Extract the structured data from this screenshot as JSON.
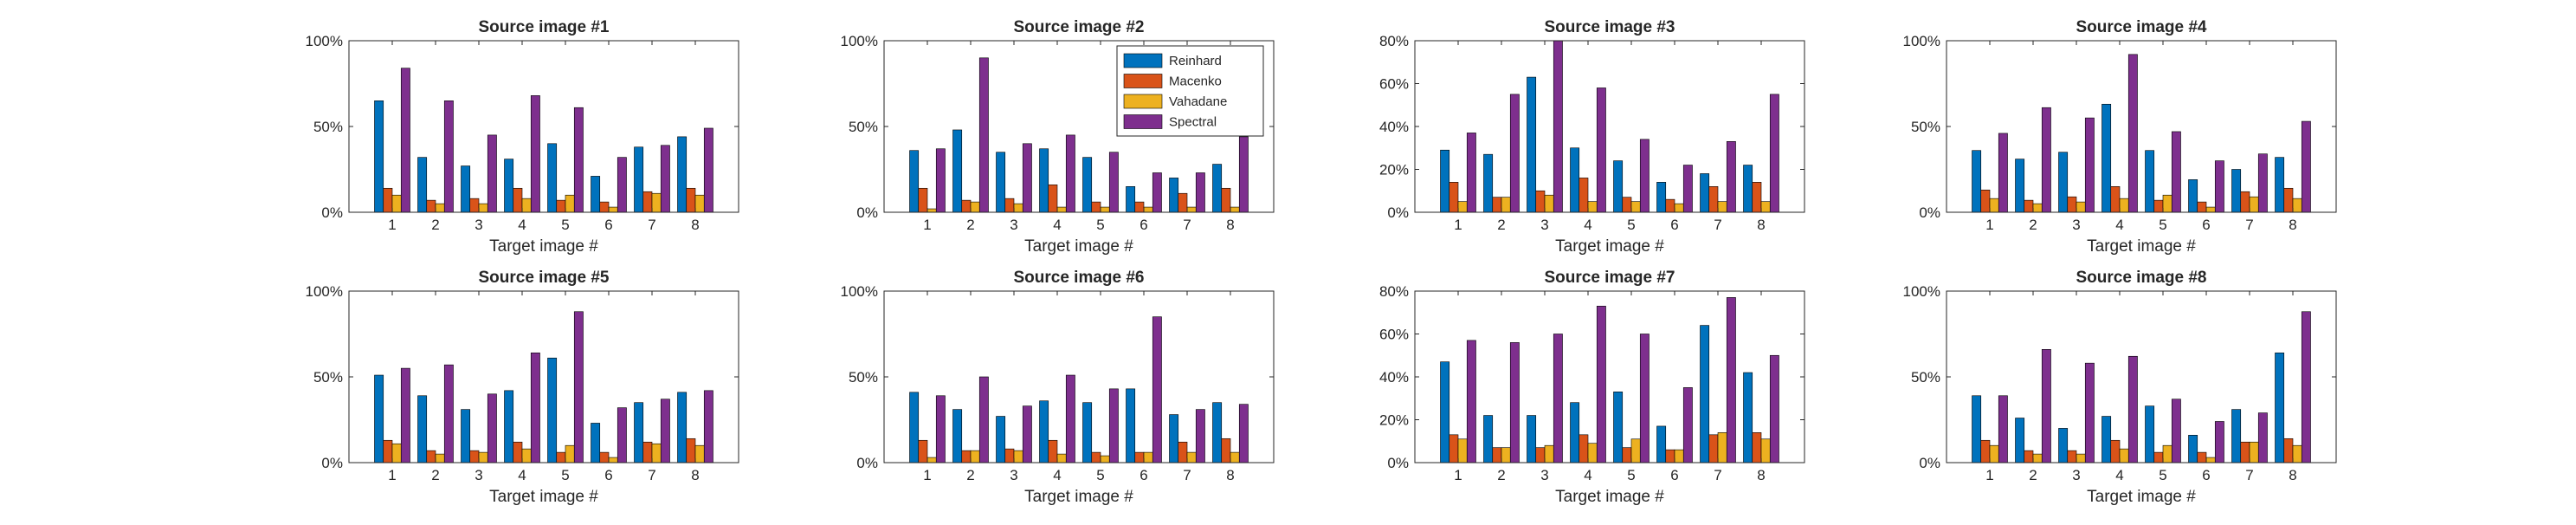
{
  "colors": {
    "Reinhard": "#0072BD",
    "Macenko": "#D95319",
    "Vahadane": "#EDB120",
    "Spectral": "#7E2F8E"
  },
  "legend": {
    "entries": [
      "Reinhard",
      "Macenko",
      "Vahadane",
      "Spectral"
    ],
    "placement": "top-right of Source image #2"
  },
  "chart_data": [
    {
      "type": "bar",
      "title": "Source image #1",
      "xlabel": "Target image #",
      "categories": [
        "1",
        "2",
        "3",
        "4",
        "5",
        "6",
        "7",
        "8"
      ],
      "ylim": [
        0,
        100
      ],
      "yticks": [
        0,
        50,
        100
      ],
      "ytick_labels": [
        "0%",
        "50%",
        "100%"
      ],
      "series": [
        {
          "name": "Reinhard",
          "values": [
            65,
            32,
            27,
            31,
            40,
            21,
            38,
            44
          ]
        },
        {
          "name": "Macenko",
          "values": [
            14,
            7,
            8,
            14,
            7,
            6,
            12,
            14
          ]
        },
        {
          "name": "Vahadane",
          "values": [
            10,
            5,
            5,
            8,
            10,
            3,
            11,
            10
          ]
        },
        {
          "name": "Spectral",
          "values": [
            84,
            65,
            45,
            68,
            61,
            32,
            39,
            49
          ]
        }
      ]
    },
    {
      "type": "bar",
      "title": "Source image #2",
      "xlabel": "Target image #",
      "categories": [
        "1",
        "2",
        "3",
        "4",
        "5",
        "6",
        "7",
        "8"
      ],
      "ylim": [
        0,
        100
      ],
      "yticks": [
        0,
        50,
        100
      ],
      "ytick_labels": [
        "0%",
        "50%",
        "100%"
      ],
      "series": [
        {
          "name": "Reinhard",
          "values": [
            36,
            48,
            35,
            37,
            32,
            15,
            20,
            28
          ]
        },
        {
          "name": "Macenko",
          "values": [
            14,
            7,
            8,
            16,
            6,
            6,
            11,
            14
          ]
        },
        {
          "name": "Vahadane",
          "values": [
            2,
            6,
            5,
            3,
            3,
            3,
            3,
            3
          ]
        },
        {
          "name": "Spectral",
          "values": [
            37,
            90,
            40,
            45,
            35,
            23,
            23,
            44
          ]
        }
      ]
    },
    {
      "type": "bar",
      "title": "Source image #3",
      "xlabel": "Target image #",
      "categories": [
        "1",
        "2",
        "3",
        "4",
        "5",
        "6",
        "7",
        "8"
      ],
      "ylim": [
        0,
        80
      ],
      "yticks": [
        0,
        20,
        40,
        60,
        80
      ],
      "ytick_labels": [
        "0%",
        "20%",
        "40%",
        "60%",
        "80%"
      ],
      "series": [
        {
          "name": "Reinhard",
          "values": [
            29,
            27,
            63,
            30,
            24,
            14,
            18,
            22
          ]
        },
        {
          "name": "Macenko",
          "values": [
            14,
            7,
            10,
            16,
            7,
            6,
            12,
            14
          ]
        },
        {
          "name": "Vahadane",
          "values": [
            5,
            7,
            8,
            5,
            5,
            4,
            5,
            5
          ]
        },
        {
          "name": "Spectral",
          "values": [
            37,
            55,
            80,
            58,
            34,
            22,
            33,
            55
          ]
        }
      ]
    },
    {
      "type": "bar",
      "title": "Source image #4",
      "xlabel": "Target image #",
      "categories": [
        "1",
        "2",
        "3",
        "4",
        "5",
        "6",
        "7",
        "8"
      ],
      "ylim": [
        0,
        100
      ],
      "yticks": [
        0,
        50,
        100
      ],
      "ytick_labels": [
        "0%",
        "50%",
        "100%"
      ],
      "series": [
        {
          "name": "Reinhard",
          "values": [
            36,
            31,
            35,
            63,
            36,
            19,
            25,
            32
          ]
        },
        {
          "name": "Macenko",
          "values": [
            13,
            7,
            9,
            15,
            7,
            6,
            12,
            14
          ]
        },
        {
          "name": "Vahadane",
          "values": [
            8,
            5,
            6,
            8,
            10,
            3,
            9,
            8
          ]
        },
        {
          "name": "Spectral",
          "values": [
            46,
            61,
            55,
            92,
            47,
            30,
            34,
            53
          ]
        }
      ]
    },
    {
      "type": "bar",
      "title": "Source image #5",
      "xlabel": "Target image #",
      "categories": [
        "1",
        "2",
        "3",
        "4",
        "5",
        "6",
        "7",
        "8"
      ],
      "ylim": [
        0,
        100
      ],
      "yticks": [
        0,
        50,
        100
      ],
      "ytick_labels": [
        "0%",
        "50%",
        "100%"
      ],
      "series": [
        {
          "name": "Reinhard",
          "values": [
            51,
            39,
            31,
            42,
            61,
            23,
            35,
            41
          ]
        },
        {
          "name": "Macenko",
          "values": [
            13,
            7,
            7,
            12,
            6,
            6,
            12,
            14
          ]
        },
        {
          "name": "Vahadane",
          "values": [
            11,
            5,
            6,
            8,
            10,
            3,
            11,
            10
          ]
        },
        {
          "name": "Spectral",
          "values": [
            55,
            57,
            40,
            64,
            88,
            32,
            37,
            42
          ]
        }
      ]
    },
    {
      "type": "bar",
      "title": "Source image #6",
      "xlabel": "Target image #",
      "categories": [
        "1",
        "2",
        "3",
        "4",
        "5",
        "6",
        "7",
        "8"
      ],
      "ylim": [
        0,
        100
      ],
      "yticks": [
        0,
        50,
        100
      ],
      "ytick_labels": [
        "0%",
        "50%",
        "100%"
      ],
      "series": [
        {
          "name": "Reinhard",
          "values": [
            41,
            31,
            27,
            36,
            35,
            43,
            28,
            35
          ]
        },
        {
          "name": "Macenko",
          "values": [
            13,
            7,
            8,
            13,
            6,
            6,
            12,
            14
          ]
        },
        {
          "name": "Vahadane",
          "values": [
            3,
            7,
            7,
            5,
            4,
            6,
            6,
            6
          ]
        },
        {
          "name": "Spectral",
          "values": [
            39,
            50,
            33,
            51,
            43,
            85,
            31,
            34
          ]
        }
      ]
    },
    {
      "type": "bar",
      "title": "Source image #7",
      "xlabel": "Target image #",
      "categories": [
        "1",
        "2",
        "3",
        "4",
        "5",
        "6",
        "7",
        "8"
      ],
      "ylim": [
        0,
        80
      ],
      "yticks": [
        0,
        20,
        40,
        60,
        80
      ],
      "ytick_labels": [
        "0%",
        "20%",
        "40%",
        "60%",
        "80%"
      ],
      "series": [
        {
          "name": "Reinhard",
          "values": [
            47,
            22,
            22,
            28,
            33,
            17,
            64,
            42
          ]
        },
        {
          "name": "Macenko",
          "values": [
            13,
            7,
            7,
            13,
            7,
            6,
            13,
            14
          ]
        },
        {
          "name": "Vahadane",
          "values": [
            11,
            7,
            8,
            9,
            11,
            6,
            14,
            11
          ]
        },
        {
          "name": "Spectral",
          "values": [
            57,
            56,
            60,
            73,
            60,
            35,
            77,
            50
          ]
        }
      ]
    },
    {
      "type": "bar",
      "title": "Source image #8",
      "xlabel": "Target image #",
      "categories": [
        "1",
        "2",
        "3",
        "4",
        "5",
        "6",
        "7",
        "8"
      ],
      "ylim": [
        0,
        100
      ],
      "yticks": [
        0,
        50,
        100
      ],
      "ytick_labels": [
        "0%",
        "50%",
        "100%"
      ],
      "series": [
        {
          "name": "Reinhard",
          "values": [
            39,
            26,
            20,
            27,
            33,
            16,
            31,
            64
          ]
        },
        {
          "name": "Macenko",
          "values": [
            13,
            7,
            7,
            13,
            6,
            6,
            12,
            14
          ]
        },
        {
          "name": "Vahadane",
          "values": [
            10,
            5,
            5,
            8,
            10,
            3,
            12,
            10
          ]
        },
        {
          "name": "Spectral",
          "values": [
            39,
            66,
            58,
            62,
            37,
            24,
            29,
            88
          ]
        }
      ]
    }
  ]
}
